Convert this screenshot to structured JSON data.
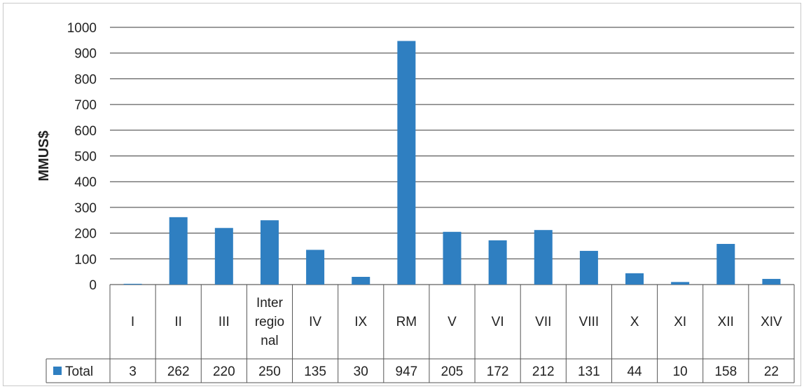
{
  "chart_data": {
    "type": "bar",
    "ylabel": "MMUS$",
    "ylim": [
      0,
      1000
    ],
    "yticks": [
      0,
      100,
      200,
      300,
      400,
      500,
      600,
      700,
      800,
      900,
      1000
    ],
    "grid": true,
    "legend": "bottom-left (data table)",
    "categories": [
      [
        "I"
      ],
      [
        "II"
      ],
      [
        "III"
      ],
      [
        "Inter",
        "regio",
        "nal"
      ],
      [
        "IV"
      ],
      [
        "IX"
      ],
      [
        "RM"
      ],
      [
        "V"
      ],
      [
        "VI"
      ],
      [
        "VII"
      ],
      [
        "VIII"
      ],
      [
        "X"
      ],
      [
        "XI"
      ],
      [
        "XII"
      ],
      [
        "XIV"
      ]
    ],
    "series": [
      {
        "name": "Total",
        "color": "#2f7fc1",
        "values": [
          3,
          262,
          220,
          250,
          135,
          30,
          947,
          205,
          172,
          212,
          131,
          44,
          10,
          158,
          22
        ]
      }
    ]
  }
}
